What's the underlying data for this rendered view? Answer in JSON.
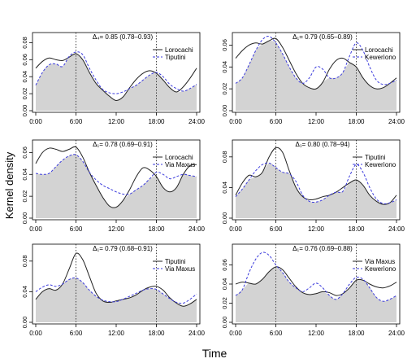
{
  "figure": {
    "ylabel": "Kernel density",
    "xlabel": "Time"
  },
  "colors": {
    "fill": "#d3d3d3",
    "solid": "#222222",
    "dashed": "#3b3bdc"
  },
  "chart_data": [
    {
      "type": "area",
      "annotation": "Δ₄= 0.85 (0.78–0.93)",
      "legend": [
        "Lorocachi",
        "Tiputini"
      ],
      "x_ticks": [
        "0:00",
        "6:00",
        "12:00",
        "18:00",
        "24:00"
      ],
      "y_ticks": [
        "0.00",
        "0.02",
        "0.04",
        "0.06",
        "0.08"
      ],
      "ylim": [
        0,
        0.09
      ],
      "vlines": [
        6,
        18
      ],
      "x": [
        0,
        1,
        2,
        3,
        4,
        5,
        6,
        7,
        8,
        9,
        10,
        11,
        12,
        13,
        14,
        15,
        16,
        17,
        18,
        19,
        20,
        21,
        22,
        23,
        24
      ],
      "series": [
        {
          "values": [
            0.05,
            0.058,
            0.062,
            0.06,
            0.059,
            0.063,
            0.067,
            0.06,
            0.045,
            0.032,
            0.024,
            0.017,
            0.012,
            0.016,
            0.027,
            0.037,
            0.044,
            0.047,
            0.044,
            0.036,
            0.027,
            0.022,
            0.028,
            0.038,
            0.05
          ]
        },
        {
          "values": [
            0.03,
            0.045,
            0.054,
            0.055,
            0.052,
            0.064,
            0.069,
            0.066,
            0.05,
            0.036,
            0.025,
            0.021,
            0.02,
            0.022,
            0.026,
            0.03,
            0.036,
            0.042,
            0.045,
            0.04,
            0.031,
            0.026,
            0.023,
            0.026,
            0.031
          ]
        }
      ]
    },
    {
      "type": "area",
      "annotation": "Δ₁= 0.79 (0.65–0.89)",
      "legend": [
        "Lorocachi",
        "Kewerìono"
      ],
      "x_ticks": [
        "0:00",
        "6:00",
        "12:00",
        "18:00",
        "24:00"
      ],
      "y_ticks": [
        "0.00",
        "0.02",
        "0.04",
        "0.06"
      ],
      "ylim": [
        0,
        0.07
      ],
      "vlines": [
        6,
        18
      ],
      "x": [
        0,
        1,
        2,
        3,
        4,
        5,
        6,
        7,
        8,
        9,
        10,
        11,
        12,
        13,
        14,
        15,
        16,
        17,
        18,
        19,
        20,
        21,
        22,
        23,
        24
      ],
      "series": [
        {
          "values": [
            0.048,
            0.055,
            0.06,
            0.062,
            0.061,
            0.064,
            0.066,
            0.058,
            0.046,
            0.034,
            0.025,
            0.021,
            0.02,
            0.026,
            0.038,
            0.046,
            0.048,
            0.044,
            0.04,
            0.03,
            0.023,
            0.02,
            0.021,
            0.025,
            0.03
          ]
        },
        {
          "values": [
            0.025,
            0.03,
            0.042,
            0.055,
            0.065,
            0.068,
            0.062,
            0.052,
            0.04,
            0.03,
            0.025,
            0.03,
            0.04,
            0.038,
            0.03,
            0.03,
            0.035,
            0.05,
            0.062,
            0.055,
            0.04,
            0.028,
            0.024,
            0.025,
            0.028
          ]
        }
      ]
    },
    {
      "type": "area",
      "annotation": "Δ₁= 0.78 (0.69–0.91)",
      "legend": [
        "Lorocachi",
        "Via Maxus"
      ],
      "x_ticks": [
        "0:00",
        "6:00",
        "12:00",
        "18:00",
        "24:00"
      ],
      "y_ticks": [
        "0.00",
        "0.02",
        "0.04",
        "0.06"
      ],
      "ylim": [
        0,
        0.07
      ],
      "vlines": [
        6,
        18
      ],
      "x": [
        0,
        1,
        2,
        3,
        4,
        5,
        6,
        7,
        8,
        9,
        10,
        11,
        12,
        13,
        14,
        15,
        16,
        17,
        18,
        19,
        20,
        21,
        22,
        23,
        24
      ],
      "series": [
        {
          "values": [
            0.05,
            0.06,
            0.064,
            0.063,
            0.061,
            0.063,
            0.065,
            0.056,
            0.042,
            0.03,
            0.019,
            0.011,
            0.01,
            0.016,
            0.026,
            0.038,
            0.046,
            0.044,
            0.038,
            0.028,
            0.024,
            0.028,
            0.04,
            0.048,
            0.049
          ]
        },
        {
          "values": [
            0.041,
            0.04,
            0.041,
            0.047,
            0.053,
            0.057,
            0.058,
            0.052,
            0.042,
            0.035,
            0.03,
            0.027,
            0.024,
            0.022,
            0.022,
            0.026,
            0.03,
            0.036,
            0.042,
            0.04,
            0.036,
            0.038,
            0.04,
            0.039,
            0.038
          ]
        }
      ]
    },
    {
      "type": "area",
      "annotation": "Δ₁= 0.80 (0.78–94)",
      "legend": [
        "Tiputini",
        "Kewerìono"
      ],
      "x_ticks": [
        "0:00",
        "6:00",
        "12:00",
        "18:00",
        "24:00"
      ],
      "y_ticks": [
        "0.00",
        "0.04",
        "0.08"
      ],
      "ylim": [
        0,
        0.1
      ],
      "vlines": [
        6,
        18
      ],
      "x": [
        0,
        1,
        2,
        3,
        4,
        5,
        6,
        7,
        8,
        9,
        10,
        11,
        12,
        13,
        14,
        15,
        16,
        17,
        18,
        19,
        20,
        21,
        22,
        23,
        24
      ],
      "series": [
        {
          "values": [
            0.03,
            0.046,
            0.056,
            0.054,
            0.06,
            0.08,
            0.092,
            0.086,
            0.062,
            0.04,
            0.028,
            0.024,
            0.025,
            0.028,
            0.03,
            0.034,
            0.04,
            0.046,
            0.05,
            0.043,
            0.03,
            0.022,
            0.018,
            0.02,
            0.03
          ]
        },
        {
          "values": [
            0.028,
            0.038,
            0.05,
            0.062,
            0.07,
            0.072,
            0.066,
            0.06,
            0.058,
            0.048,
            0.03,
            0.022,
            0.021,
            0.024,
            0.03,
            0.034,
            0.035,
            0.055,
            0.07,
            0.06,
            0.04,
            0.025,
            0.019,
            0.02,
            0.024
          ]
        }
      ]
    },
    {
      "type": "area",
      "annotation": "Δ₁= 0.79 (0.68–0.91)",
      "legend": [
        "Tiputini",
        "Via Maxus"
      ],
      "x_ticks": [
        "0:00",
        "6:00",
        "12:00",
        "18:00",
        "24:00"
      ],
      "y_ticks": [
        "0.00",
        "0.04",
        "0.08"
      ],
      "ylim": [
        0,
        0.1
      ],
      "vlines": [
        6,
        18
      ],
      "x": [
        0,
        1,
        2,
        3,
        4,
        5,
        6,
        7,
        8,
        9,
        10,
        11,
        12,
        13,
        14,
        15,
        16,
        17,
        18,
        19,
        20,
        21,
        22,
        23,
        24
      ],
      "series": [
        {
          "values": [
            0.03,
            0.04,
            0.044,
            0.042,
            0.05,
            0.07,
            0.09,
            0.082,
            0.06,
            0.038,
            0.028,
            0.026,
            0.028,
            0.03,
            0.032,
            0.036,
            0.042,
            0.046,
            0.047,
            0.042,
            0.032,
            0.025,
            0.021,
            0.024,
            0.03
          ]
        },
        {
          "values": [
            0.04,
            0.046,
            0.049,
            0.047,
            0.05,
            0.056,
            0.058,
            0.052,
            0.042,
            0.034,
            0.029,
            0.027,
            0.027,
            0.03,
            0.034,
            0.038,
            0.042,
            0.044,
            0.043,
            0.037,
            0.031,
            0.026,
            0.025,
            0.03,
            0.037
          ]
        }
      ]
    },
    {
      "type": "area",
      "annotation": "Δ₁= 0.76 (0.69–0.88)",
      "legend": [
        "Via Maxus",
        "Kewerìono"
      ],
      "x_ticks": [
        "0:00",
        "6:00",
        "12:00",
        "18:00",
        "24:00"
      ],
      "y_ticks": [
        "0.00",
        "0.02",
        "0.04",
        "0.06"
      ],
      "ylim": [
        0,
        0.08
      ],
      "vlines": [
        6,
        18
      ],
      "x": [
        0,
        1,
        2,
        3,
        4,
        5,
        6,
        7,
        8,
        9,
        10,
        11,
        12,
        13,
        14,
        15,
        16,
        17,
        18,
        19,
        20,
        21,
        22,
        23,
        24
      ],
      "series": [
        {
          "values": [
            0.04,
            0.042,
            0.041,
            0.04,
            0.045,
            0.053,
            0.058,
            0.055,
            0.046,
            0.037,
            0.031,
            0.029,
            0.03,
            0.032,
            0.031,
            0.028,
            0.03,
            0.036,
            0.044,
            0.044,
            0.04,
            0.037,
            0.036,
            0.038,
            0.042
          ]
        },
        {
          "values": [
            0.028,
            0.034,
            0.052,
            0.066,
            0.073,
            0.07,
            0.06,
            0.052,
            0.042,
            0.036,
            0.032,
            0.036,
            0.041,
            0.036,
            0.028,
            0.024,
            0.03,
            0.04,
            0.047,
            0.045,
            0.036,
            0.026,
            0.022,
            0.024,
            0.028
          ]
        }
      ]
    }
  ]
}
